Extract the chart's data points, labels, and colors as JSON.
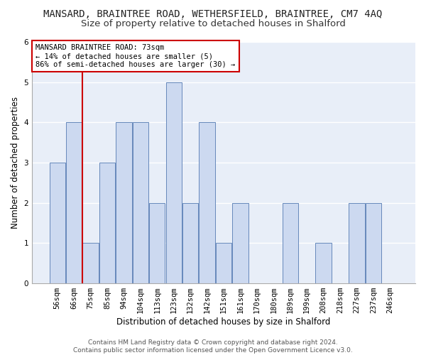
{
  "title": "MANSARD, BRAINTREE ROAD, WETHERSFIELD, BRAINTREE, CM7 4AQ",
  "subtitle": "Size of property relative to detached houses in Shalford",
  "xlabel": "Distribution of detached houses by size in Shalford",
  "ylabel": "Number of detached properties",
  "categories": [
    "56sqm",
    "66sqm",
    "75sqm",
    "85sqm",
    "94sqm",
    "104sqm",
    "113sqm",
    "123sqm",
    "132sqm",
    "142sqm",
    "151sqm",
    "161sqm",
    "170sqm",
    "180sqm",
    "189sqm",
    "199sqm",
    "208sqm",
    "218sqm",
    "227sqm",
    "237sqm",
    "246sqm"
  ],
  "values": [
    3,
    4,
    1,
    3,
    4,
    4,
    2,
    5,
    2,
    4,
    1,
    2,
    0,
    0,
    2,
    0,
    1,
    0,
    2,
    2,
    0
  ],
  "bar_color": "#ccd9f0",
  "bar_edge_color": "#6688bb",
  "vline_x": 1.5,
  "vline_color": "#cc0000",
  "annotation_text": "MANSARD BRAINTREE ROAD: 73sqm\n← 14% of detached houses are smaller (5)\n86% of semi-detached houses are larger (30) →",
  "annotation_box_color": "#ffffff",
  "annotation_box_edge_color": "#cc0000",
  "ylim": [
    0,
    6
  ],
  "yticks": [
    0,
    1,
    2,
    3,
    4,
    5,
    6
  ],
  "footnote": "Contains HM Land Registry data © Crown copyright and database right 2024.\nContains public sector information licensed under the Open Government Licence v3.0.",
  "fig_bg_color": "#ffffff",
  "plot_bg_color": "#e8eef8",
  "grid_color": "#ffffff",
  "title_fontsize": 10,
  "subtitle_fontsize": 9.5,
  "axis_label_fontsize": 8.5,
  "tick_fontsize": 7.5,
  "annotation_fontsize": 7.5,
  "footnote_fontsize": 6.5
}
